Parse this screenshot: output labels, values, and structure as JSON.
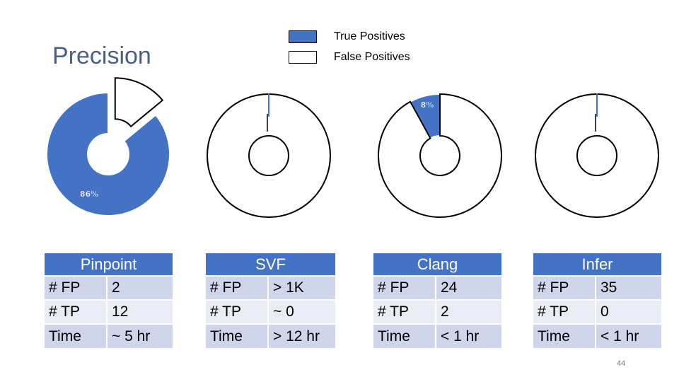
{
  "slide": {
    "title": "Precision",
    "page_number": "44"
  },
  "legend": {
    "items": [
      {
        "label": "True Positives",
        "color": "#4472c4"
      },
      {
        "label": "False Positives",
        "color": "#ffffff"
      }
    ]
  },
  "chart_data": [
    {
      "type": "pie",
      "categories": [
        "True Positives",
        "False Positives"
      ],
      "values": [
        86,
        14
      ],
      "data_labels": [
        "86%",
        ""
      ]
    },
    {
      "type": "pie",
      "categories": [
        "True Positives",
        "False Positives"
      ],
      "values": [
        0,
        100
      ],
      "data_labels": [
        "",
        ""
      ]
    },
    {
      "type": "pie",
      "categories": [
        "True Positives",
        "False Positives"
      ],
      "values": [
        8,
        92
      ],
      "data_labels": [
        "8%",
        ""
      ]
    },
    {
      "type": "pie",
      "categories": [
        "True Positives",
        "False Positives"
      ],
      "values": [
        0,
        100
      ],
      "data_labels": [
        "",
        ""
      ]
    }
  ],
  "tables": [
    {
      "header": "Pinpoint",
      "rows": [
        [
          "# FP",
          "2"
        ],
        [
          "# TP",
          "12"
        ],
        [
          "Time",
          "~ 5 hr"
        ]
      ]
    },
    {
      "header": "SVF",
      "rows": [
        [
          "# FP",
          "> 1K"
        ],
        [
          "# TP",
          "~ 0"
        ],
        [
          "Time",
          "> 12 hr"
        ]
      ]
    },
    {
      "header": "Clang",
      "rows": [
        [
          "# FP",
          "24"
        ],
        [
          "# TP",
          "2"
        ],
        [
          "Time",
          "< 1 hr"
        ]
      ]
    },
    {
      "header": "Infer",
      "rows": [
        [
          "# FP",
          "35"
        ],
        [
          "# TP",
          "0"
        ],
        [
          "Time",
          "< 1 hr"
        ]
      ]
    }
  ]
}
